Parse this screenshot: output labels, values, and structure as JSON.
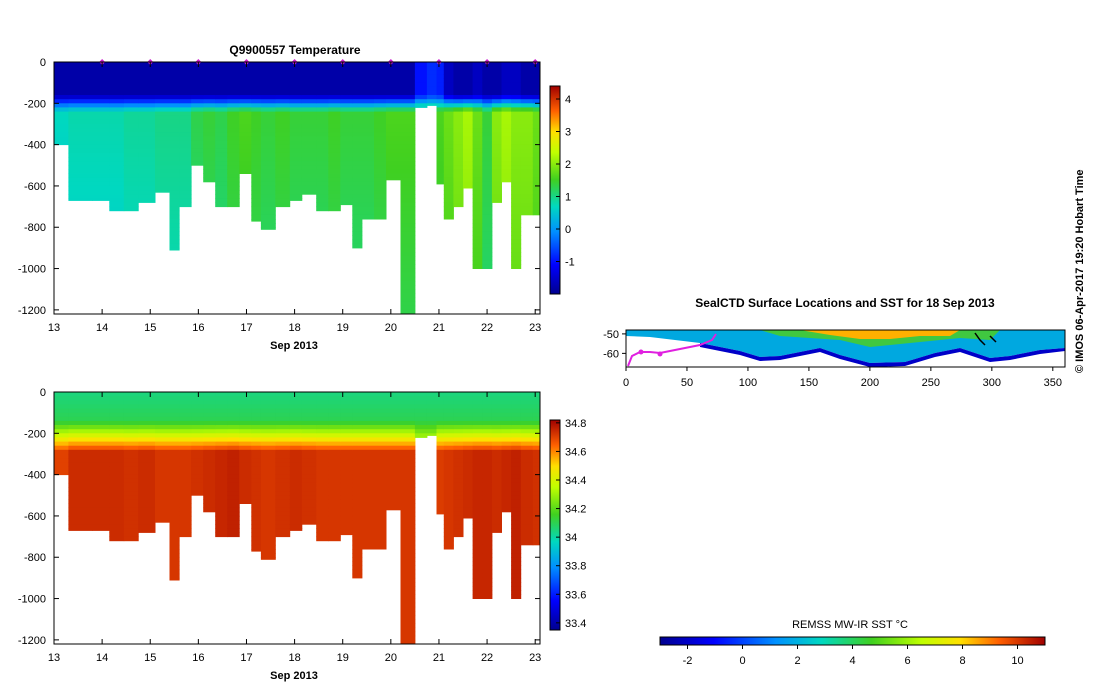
{
  "chart_data": [
    {
      "type": "heatmap",
      "title": "Q9900557  Temperature",
      "xlabel": "Sep 2013",
      "ylabel": "",
      "xlim": [
        13,
        23.1
      ],
      "ylim": [
        -1220,
        0
      ],
      "x_ticks": [
        13,
        14,
        15,
        16,
        17,
        18,
        19,
        20,
        21,
        22,
        23
      ],
      "y_ticks": [
        0,
        -200,
        -400,
        -600,
        -800,
        -1000,
        -1200
      ],
      "colorbar": {
        "min": -2,
        "max": 4.4,
        "ticks": [
          -1,
          0,
          1,
          2,
          3,
          4
        ]
      },
      "profile_markers_x": [
        14,
        15,
        16,
        17,
        18,
        19,
        20,
        21,
        22,
        23
      ],
      "profile_times": [
        13.0,
        13.6,
        14.0,
        14.3,
        14.6,
        14.9,
        15.3,
        15.5,
        15.7,
        16.0,
        16.2,
        16.5,
        16.7,
        17.0,
        17.2,
        17.4,
        17.8,
        18.0,
        18.3,
        18.6,
        18.8,
        19.1,
        19.3,
        19.5,
        19.8,
        20.0,
        20.4,
        20.6,
        20.9,
        21.0,
        21.2,
        21.4,
        21.6,
        21.8,
        22.0,
        22.2,
        22.4,
        22.6,
        22.8,
        23.1
      ],
      "max_depths": [
        -400,
        -670,
        -670,
        -720,
        -720,
        -680,
        -630,
        -910,
        -700,
        -500,
        -580,
        -700,
        -700,
        -540,
        -770,
        -810,
        -700,
        -670,
        -640,
        -720,
        -720,
        -690,
        -900,
        -760,
        -760,
        -570,
        -1220,
        -220,
        -210,
        -590,
        -760,
        -700,
        -610,
        -1000,
        -1000,
        -680,
        -580,
        -1000,
        -740,
        -740
      ],
      "surface_temp": [
        -1.8,
        -1.8,
        -1.8,
        -1.8,
        -1.8,
        -1.8,
        -1.8,
        -1.8,
        -1.8,
        -1.8,
        -1.8,
        -1.8,
        -1.8,
        -1.8,
        -1.8,
        -1.8,
        -1.8,
        -1.8,
        -1.8,
        -1.8,
        -1.8,
        -1.8,
        -1.8,
        -1.8,
        -1.8,
        -1.8,
        -1.8,
        -1.0,
        -0.8,
        -0.9,
        -1.6,
        -1.8,
        -1.8,
        -1.6,
        -1.8,
        -1.8,
        -1.6,
        -1.6,
        -1.8,
        -1.8
      ],
      "deep_temp": [
        0.7,
        0.8,
        0.8,
        0.8,
        0.9,
        0.9,
        1.0,
        1.0,
        1.0,
        1.3,
        1.4,
        1.3,
        1.5,
        1.6,
        1.5,
        1.4,
        1.5,
        1.4,
        1.4,
        1.4,
        1.5,
        1.4,
        1.4,
        1.4,
        1.5,
        1.6,
        1.6,
        1.6,
        1.6,
        1.6,
        1.8,
        2.0,
        2.2,
        1.8,
        1.4,
        2.0,
        2.2,
        2.0,
        2.0,
        1.8
      ]
    },
    {
      "type": "heatmap",
      "title": "",
      "xlabel": "Sep 2013",
      "ylabel": "",
      "xlim": [
        13,
        23.1
      ],
      "ylim": [
        -1220,
        0
      ],
      "x_ticks": [
        13,
        14,
        15,
        16,
        17,
        18,
        19,
        20,
        21,
        22,
        23
      ],
      "y_ticks": [
        0,
        -200,
        -400,
        -600,
        -800,
        -1000,
        -1200
      ],
      "colorbar": {
        "min": 33.35,
        "max": 34.82,
        "ticks": [
          "34.8",
          "34.6",
          "34.4",
          "34.2",
          "34",
          "33.8",
          "33.6",
          "33.4"
        ]
      },
      "surface_salinity": 34.05,
      "deep_salinity": [
        34.7,
        34.74,
        34.74,
        34.74,
        34.73,
        34.74,
        34.72,
        34.72,
        34.72,
        34.73,
        34.74,
        34.75,
        34.76,
        34.74,
        34.73,
        34.72,
        34.73,
        34.74,
        34.73,
        34.72,
        34.72,
        34.72,
        34.72,
        34.72,
        34.72,
        34.72,
        34.72,
        34.5,
        34.5,
        34.71,
        34.72,
        34.73,
        34.74,
        34.75,
        34.75,
        34.74,
        34.75,
        34.76,
        34.74,
        34.73
      ]
    },
    {
      "type": "map",
      "title": "SealCTD Surface Locations and SST for 18 Sep 2013",
      "xlim": [
        0,
        360
      ],
      "ylim": [
        -67,
        -48
      ],
      "x_ticks": [
        0,
        50,
        100,
        150,
        200,
        250,
        300,
        350
      ],
      "y_ticks": [
        -50,
        -60
      ],
      "sst_colorbar": {
        "label": "REMSS MW-IR SST °C",
        "min": -3,
        "max": 11,
        "ticks": [
          -2,
          0,
          2,
          4,
          6,
          8,
          10
        ]
      },
      "track_color": "#e020e0"
    }
  ],
  "side_text": "© IMOS 06-Apr-2017 19:20 Hobart Time",
  "colors": {
    "marker": "#d020d0",
    "axis": "#000000",
    "background": "#ffffff"
  }
}
